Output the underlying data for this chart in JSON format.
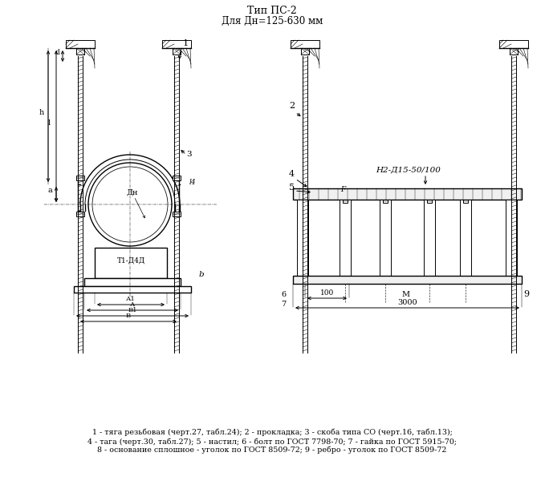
{
  "title1": "Тип ПС-2",
  "title2": "Для Дн=125-630 мм",
  "legend_line1": "1 - тяга резьбовая (черт.27, табл.24); 2 - прокладка; 3 - скоба типа СО (черт.16, табл.13);",
  "legend_line2": "4 - тага (черт.30, табл.27); 5 - настил; 6 - болт по ГОСТ 7798-70; 7 - гайка по ГОСТ 5915-70;",
  "legend_line3": "8 - основание сплошное - уголок по ГОСТ 8509-72; 9 - ребро - уголок по ГОСТ 8509-72",
  "bg_color": "#ffffff",
  "lc": "#000000"
}
